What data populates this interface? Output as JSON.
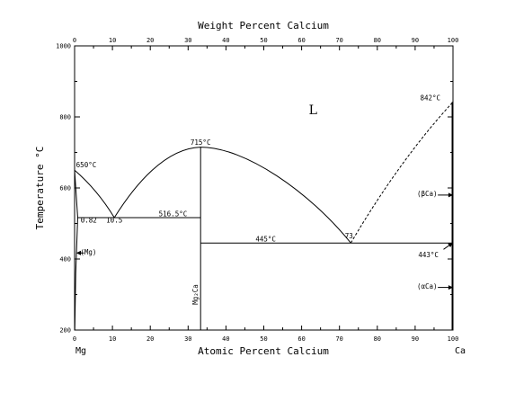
{
  "chart_data": {
    "type": "phase-diagram",
    "title": "",
    "top_axis": {
      "label": "Weight Percent Calcium",
      "range": [
        0,
        100
      ],
      "ticks": [
        "0",
        "10",
        "20",
        "30",
        "40",
        "50",
        "60",
        "70",
        "80",
        "90",
        "100"
      ]
    },
    "bottom_axis": {
      "label": "Atomic Percent Calcium",
      "range": [
        0,
        100
      ],
      "ticks": [
        "0",
        "10",
        "20",
        "30",
        "40",
        "50",
        "60",
        "70",
        "80",
        "90",
        "100"
      ]
    },
    "left_axis": {
      "label": "Temperature °C",
      "range": [
        200,
        1000
      ],
      "ticks": [
        "200",
        "400",
        "600",
        "800",
        "1000"
      ]
    },
    "element_labels": {
      "left": "Mg",
      "right": "Ca"
    },
    "phase_regions": {
      "liquid": "L",
      "mg_solid": "(Mg)",
      "beta_ca": "(βCa)",
      "alpha_ca": "(αCa)",
      "compound": "Mg₂Ca"
    },
    "annotations": {
      "mg_melting": "650°C",
      "ca_melting": "842°C",
      "compound_melting": "715°C",
      "eutectic_1_temp": "516.5°C",
      "eutectic_1_comp": "10.5",
      "mg_solubility": "0.82",
      "eutectic_2_temp": "445°C",
      "eutectic_2_comp": "73",
      "ca_transformation": "443°C"
    },
    "key_points": {
      "mg_melting": {
        "x": 0,
        "t": 650
      },
      "eutectic_1": {
        "x": 10.5,
        "t": 516.5
      },
      "mg_solubility_limit": {
        "x": 0.82,
        "t": 516.5
      },
      "compound": {
        "x": 33.3,
        "t": 715
      },
      "eutectic_2": {
        "x": 73,
        "t": 445
      },
      "ca_melting": {
        "x": 100,
        "t": 842
      },
      "ca_transformation": {
        "x": 100,
        "t": 443
      }
    },
    "grid": false
  }
}
